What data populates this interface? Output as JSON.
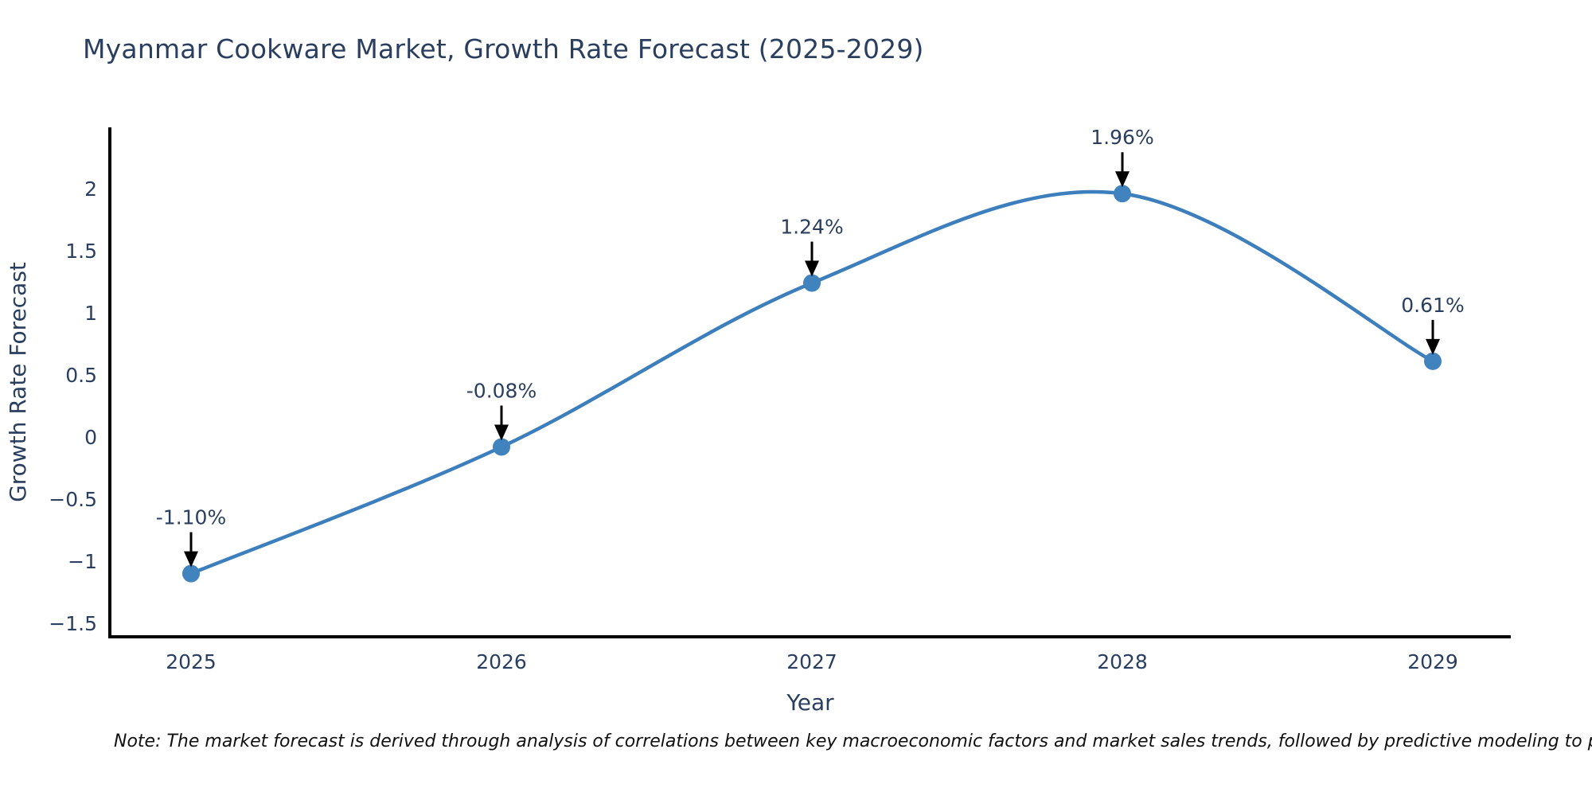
{
  "page": {
    "title": "Myanmar Cookware Market, Growth Rate Forecast (2025-2029)",
    "note": "Note: The market forecast is derived through analysis of correlations between key macroeconomic factors and market sales trends, followed by predictive modeling to project future sales."
  },
  "chart_data": {
    "type": "line",
    "title": "Myanmar Cookware Market, Growth Rate Forecast (2025-2029)",
    "xlabel": "Year",
    "ylabel": "Growth Rate Forecast",
    "categories": [
      "2025",
      "2026",
      "2027",
      "2028",
      "2029"
    ],
    "series": [
      {
        "name": "Growth Rate Forecast",
        "values": [
          -1.1,
          -0.08,
          1.24,
          1.96,
          0.61
        ]
      }
    ],
    "annotations": [
      "-1.10%",
      "-0.08%",
      "1.24%",
      "1.96%",
      "0.61%"
    ],
    "yticks": [
      2,
      1.5,
      1,
      0.5,
      0,
      -0.5,
      -1,
      -1.5
    ],
    "ylim": [
      -1.61,
      2.49
    ],
    "grid": false,
    "legend": "none",
    "curve": "spline",
    "colors": {
      "line": "#3d7ebd",
      "marker": "#4183be",
      "axis": "#000000",
      "text": "#2a3f5f",
      "annotation_arrow": "#000000"
    }
  }
}
